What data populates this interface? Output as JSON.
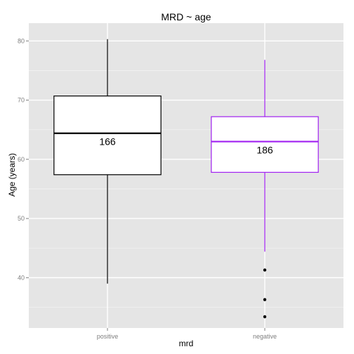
{
  "chart_data": {
    "type": "boxplot",
    "title": "MRD ~ age",
    "xlabel": "mrd",
    "ylabel": "Age (years)",
    "ylim": [
      31.5,
      83
    ],
    "yticks": [
      40,
      50,
      60,
      70,
      80
    ],
    "ytick_labels": [
      "40",
      "50",
      "60",
      "70",
      "80"
    ],
    "grid": true,
    "legend": "none",
    "panel_background": "#e5e5e5",
    "grid_major_color": "#ffffff",
    "grid_minor_color": "#f2f2f2",
    "categories": [
      "positive",
      "negative"
    ],
    "boxes": [
      {
        "category": "positive",
        "color": "#000000",
        "whisker_low": 39.0,
        "q1": 57.4,
        "median": 64.4,
        "q3": 70.7,
        "whisker_high": 80.3,
        "outliers": [],
        "count_label": "166"
      },
      {
        "category": "negative",
        "color": "#a020f0",
        "whisker_low": 44.4,
        "q1": 57.8,
        "median": 63.0,
        "q3": 67.2,
        "whisker_high": 76.8,
        "outliers": [
          41.3,
          36.3,
          33.4
        ],
        "count_label": "186"
      }
    ]
  }
}
